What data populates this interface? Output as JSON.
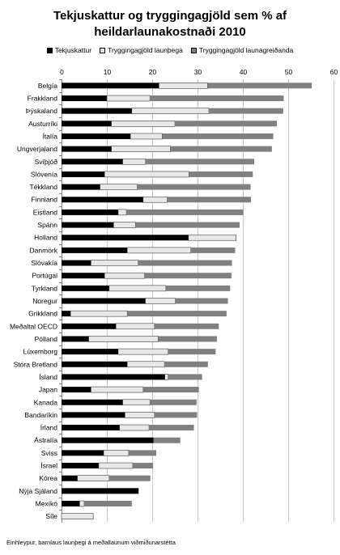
{
  "title_line1": "Tekjuskattur og tryggingagjöld sem % af",
  "title_line2": "heildarlaunakostnaði 2010",
  "footnote": "Einhleypur, barnlaus launþegi á meðallaunum viðmiðunarstétta",
  "chart_data": {
    "type": "bar",
    "orientation": "horizontal",
    "stacked": true,
    "xlim": [
      0,
      60
    ],
    "xticks": [
      0,
      10,
      20,
      30,
      40,
      50,
      60
    ],
    "tick_position": "top",
    "legend_position": "top",
    "categories": [
      "Belgía",
      "Frakkland",
      "Þýskaland",
      "Austurríki",
      "Ítalía",
      "Ungverjaland",
      "Svíþjóð",
      "Slóvenía",
      "Tékkland",
      "Finnland",
      "Eistland",
      "Spánn",
      "Holland",
      "Danmörk",
      "Slóvakía",
      "Portúgal",
      "Tyrkland",
      "Noregur",
      "Grikkland",
      "Meðaltal OECD",
      "Pólland",
      "Lúxemborg",
      "Stóra Bretland",
      "Ísland",
      "Japan",
      "Kanada",
      "Bandaríkin",
      "Írland",
      "Ástralía",
      "Sviss",
      "Ísrael",
      "Kórea",
      "Nýja Sjáland",
      "Mexíkó",
      "Síle"
    ],
    "series": [
      {
        "name": "Tekjuskattur",
        "color": "#000000",
        "values": [
          21.5,
          10,
          15.5,
          11,
          15.2,
          11,
          13.5,
          9.5,
          8.5,
          18,
          12.5,
          11.5,
          28,
          14.5,
          6.5,
          9.5,
          10.5,
          18.5,
          2,
          12,
          6,
          12.5,
          14.5,
          22.8,
          6.5,
          13.5,
          14,
          12.8,
          20.3,
          9.3,
          8.2,
          3.5,
          17,
          4,
          0
        ]
      },
      {
        "name": "Tryggingagjöld launþega",
        "color": "#e8e8e8",
        "values": [
          10.7,
          9.5,
          17,
          14,
          7,
          13,
          5,
          18.6,
          8.2,
          5.3,
          1.8,
          4.8,
          10.5,
          14,
          10.4,
          8.8,
          12.5,
          6.6,
          12.5,
          8.5,
          15.3,
          11,
          8.2,
          0.7,
          11.5,
          6,
          6.5,
          6.5,
          0,
          5.5,
          7.5,
          7,
          0,
          1,
          7
        ]
      },
      {
        "name": "Tryggingagjöld launagreiðanda",
        "color": "#808080",
        "values": [
          23,
          29.5,
          16.4,
          22.5,
          24.5,
          22.4,
          24,
          14.1,
          25,
          18.5,
          25.8,
          23,
          0,
          9.8,
          20.7,
          19.2,
          14.2,
          11.6,
          21.9,
          14.2,
          13,
          10.5,
          9.6,
          7.5,
          12.3,
          10.3,
          9.4,
          9.9,
          5.9,
          6.1,
          4.5,
          9.1,
          0,
          10.5,
          0
        ]
      }
    ]
  }
}
